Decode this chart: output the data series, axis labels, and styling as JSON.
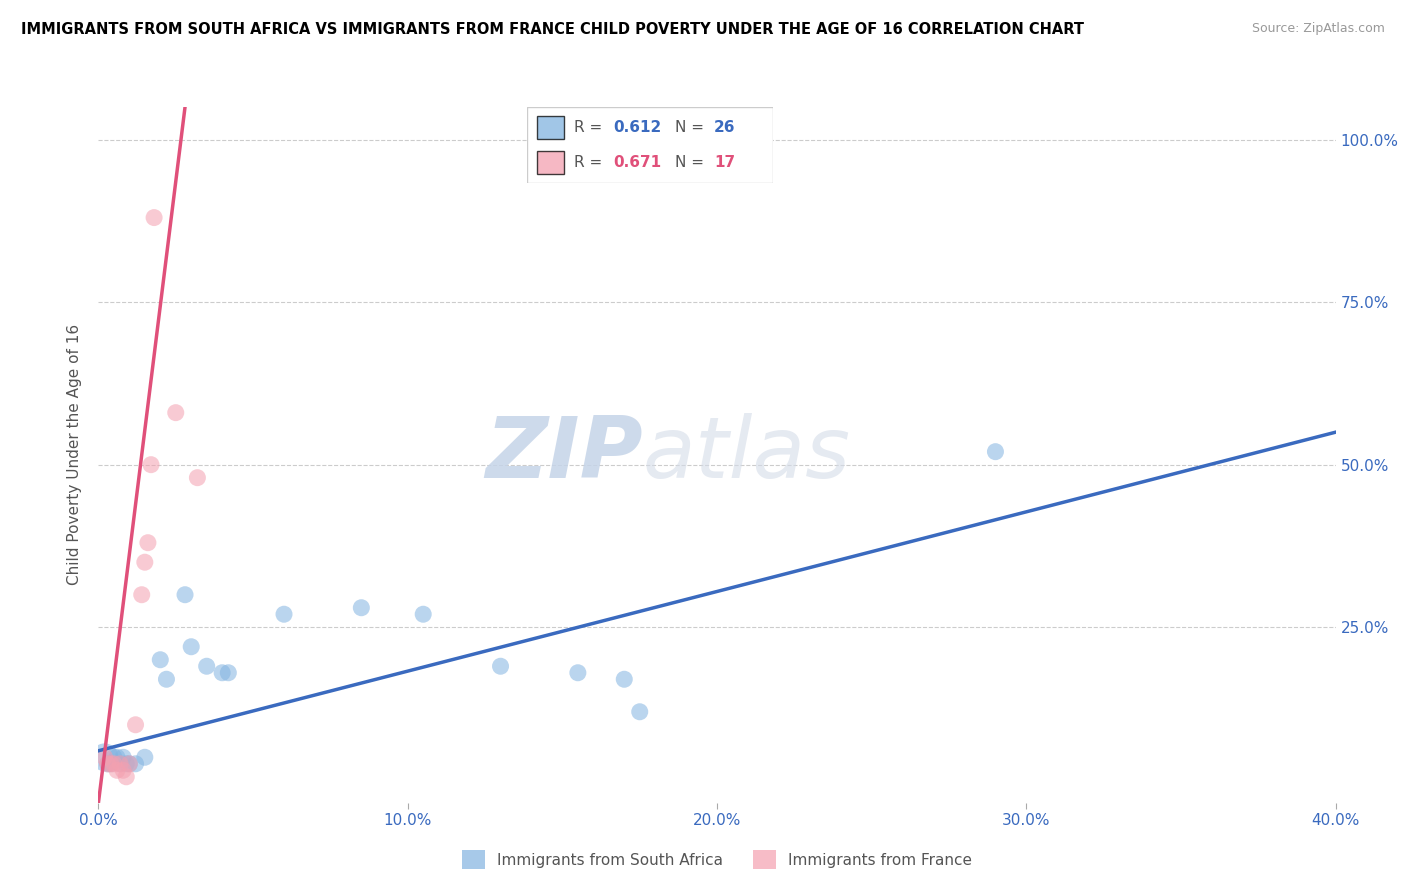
{
  "title": "IMMIGRANTS FROM SOUTH AFRICA VS IMMIGRANTS FROM FRANCE CHILD POVERTY UNDER THE AGE OF 16 CORRELATION CHART",
  "source": "Source: ZipAtlas.com",
  "ylabel": "Child Poverty Under the Age of 16",
  "xlim": [
    0.0,
    0.4
  ],
  "ylim": [
    -0.02,
    1.05
  ],
  "xtick_vals": [
    0.0,
    0.1,
    0.2,
    0.3,
    0.4
  ],
  "xtick_labels": [
    "0.0%",
    "10.0%",
    "20.0%",
    "30.0%",
    "40.0%"
  ],
  "ytick_vals": [
    0.25,
    0.5,
    0.75,
    1.0
  ],
  "ytick_right_labels": [
    "25.0%",
    "50.0%",
    "75.0%",
    "100.0%"
  ],
  "blue_color": "#82b3e0",
  "pink_color": "#f4a0b0",
  "blue_line_color": "#3a6abf",
  "pink_line_color": "#e0507a",
  "legend_blue_R": "0.612",
  "legend_blue_N": "26",
  "legend_pink_R": "0.671",
  "legend_pink_N": "17",
  "watermark_ZIP": "ZIP",
  "watermark_atlas": "atlas",
  "blue_scatter": [
    [
      0.002,
      0.05
    ],
    [
      0.003,
      0.04
    ],
    [
      0.004,
      0.04
    ],
    [
      0.005,
      0.05
    ],
    [
      0.006,
      0.05
    ],
    [
      0.007,
      0.04
    ],
    [
      0.008,
      0.05
    ],
    [
      0.009,
      0.04
    ],
    [
      0.01,
      0.04
    ],
    [
      0.012,
      0.04
    ],
    [
      0.015,
      0.05
    ],
    [
      0.02,
      0.2
    ],
    [
      0.022,
      0.17
    ],
    [
      0.028,
      0.3
    ],
    [
      0.03,
      0.22
    ],
    [
      0.035,
      0.19
    ],
    [
      0.04,
      0.18
    ],
    [
      0.042,
      0.18
    ],
    [
      0.06,
      0.27
    ],
    [
      0.085,
      0.28
    ],
    [
      0.105,
      0.27
    ],
    [
      0.13,
      0.19
    ],
    [
      0.155,
      0.18
    ],
    [
      0.17,
      0.17
    ],
    [
      0.29,
      0.52
    ],
    [
      0.175,
      0.12
    ]
  ],
  "blue_sizes": [
    80,
    30,
    30,
    30,
    30,
    30,
    30,
    30,
    30,
    30,
    30,
    30,
    30,
    30,
    30,
    30,
    30,
    30,
    30,
    30,
    30,
    30,
    30,
    30,
    30,
    30
  ],
  "pink_scatter": [
    [
      0.002,
      0.05
    ],
    [
      0.003,
      0.04
    ],
    [
      0.004,
      0.04
    ],
    [
      0.005,
      0.04
    ],
    [
      0.006,
      0.03
    ],
    [
      0.007,
      0.04
    ],
    [
      0.008,
      0.03
    ],
    [
      0.009,
      0.02
    ],
    [
      0.01,
      0.04
    ],
    [
      0.012,
      0.1
    ],
    [
      0.014,
      0.3
    ],
    [
      0.015,
      0.35
    ],
    [
      0.016,
      0.38
    ],
    [
      0.017,
      0.5
    ],
    [
      0.025,
      0.58
    ],
    [
      0.032,
      0.48
    ],
    [
      0.018,
      0.88
    ]
  ],
  "pink_sizes": [
    30,
    30,
    30,
    30,
    30,
    30,
    30,
    30,
    30,
    30,
    30,
    30,
    30,
    30,
    30,
    30,
    30
  ],
  "blue_line": {
    "x0": 0.0,
    "y0": 0.06,
    "x1": 0.4,
    "y1": 0.55
  },
  "pink_line": {
    "x0": 0.0,
    "y0": -0.02,
    "x1": 0.028,
    "y1": 1.05
  }
}
